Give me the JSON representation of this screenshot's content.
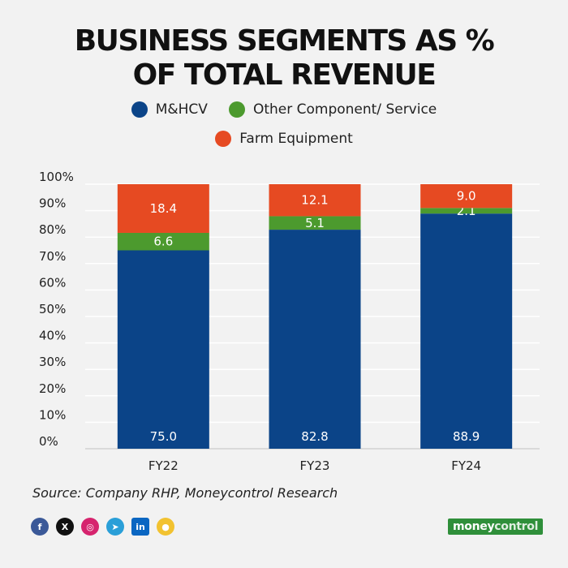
{
  "title_line1": "BUSINESS SEGMENTS AS %",
  "title_line2": "OF TOTAL REVENUE",
  "legend": [
    {
      "label": "M&HCV",
      "color": "#0b4488"
    },
    {
      "label": "Other Component/ Service",
      "color": "#4c9a2e"
    },
    {
      "label": "Farm Equipment",
      "color": "#e64a22"
    }
  ],
  "source": "Source: Company RHP, Moneycontrol Research",
  "brand": {
    "part1": "money",
    "part2": "control"
  },
  "social_icons": [
    "facebook-icon",
    "x-icon",
    "instagram-icon",
    "telegram-icon",
    "linkedin-icon",
    "koo-icon"
  ],
  "chart_data": {
    "type": "bar",
    "stacked": true,
    "categories": [
      "FY22",
      "FY23",
      "FY24"
    ],
    "series": [
      {
        "name": "M&HCV",
        "color": "#0b4488",
        "values": [
          75.0,
          82.8,
          88.9
        ],
        "labels": [
          "75.0",
          "82.8",
          "88.9"
        ]
      },
      {
        "name": "Other Component/ Service",
        "color": "#4c9a2e",
        "values": [
          6.6,
          5.1,
          2.1
        ],
        "labels": [
          "6.6",
          "5.1",
          "2.1"
        ]
      },
      {
        "name": "Farm Equipment",
        "color": "#e64a22",
        "values": [
          18.4,
          12.1,
          9.0
        ],
        "labels": [
          "18.4",
          "12.1",
          "9.0"
        ]
      }
    ],
    "yticks": [
      "0%",
      "10%",
      "20%",
      "30%",
      "40%",
      "50%",
      "60%",
      "70%",
      "80%",
      "90%",
      "100%"
    ],
    "ylim": [
      0,
      100
    ],
    "grid": true,
    "legend_position": "top"
  }
}
